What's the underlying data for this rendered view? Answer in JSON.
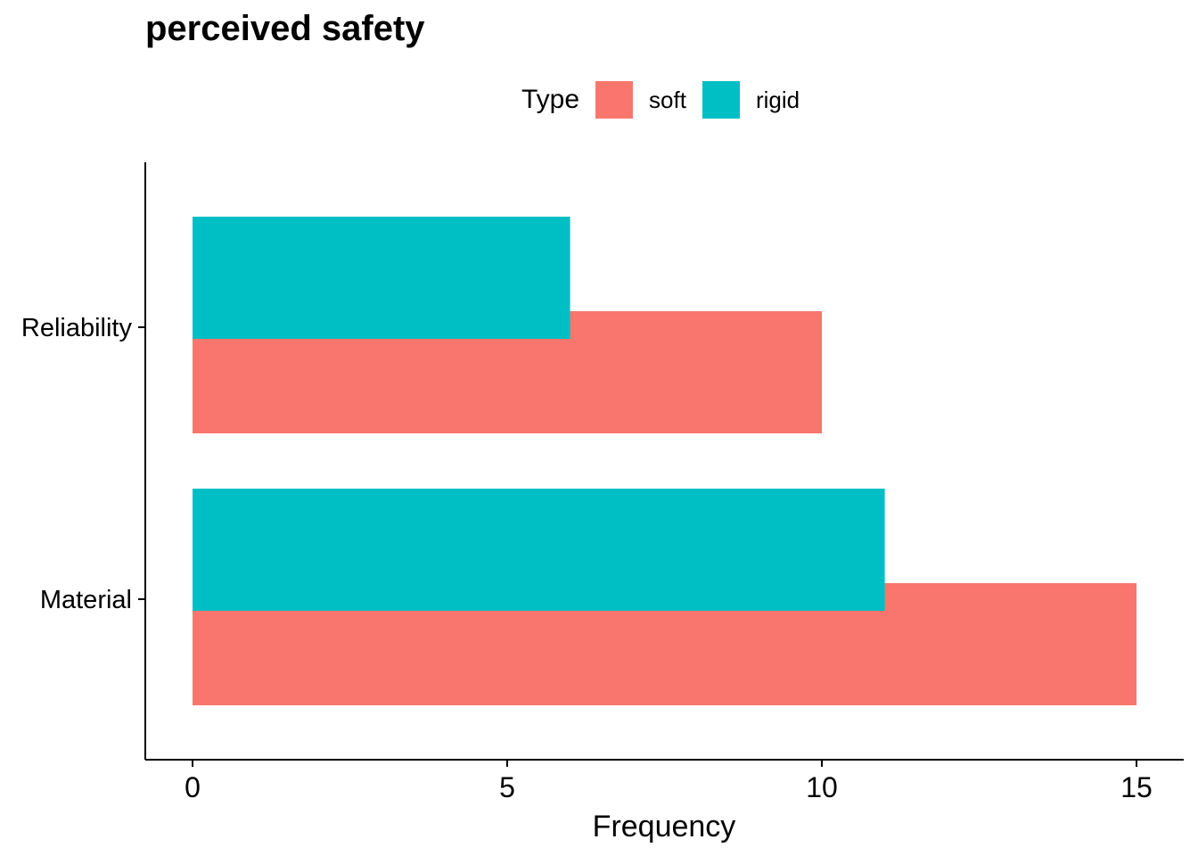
{
  "chart_data": {
    "type": "bar",
    "orientation": "horizontal",
    "title": "perceived safety",
    "xlabel": "Frequency",
    "ylabel": "",
    "categories": [
      "Material",
      "Reliability"
    ],
    "series": [
      {
        "name": "soft",
        "color": "#F8766D",
        "values": [
          15,
          10
        ]
      },
      {
        "name": "rigid",
        "color": "#00BFC4",
        "values": [
          11,
          6
        ]
      }
    ],
    "xlim": [
      0,
      15
    ],
    "xticks": [
      0,
      5,
      10,
      15
    ],
    "legend": {
      "title": "Type",
      "position": "top"
    },
    "grid": false
  }
}
